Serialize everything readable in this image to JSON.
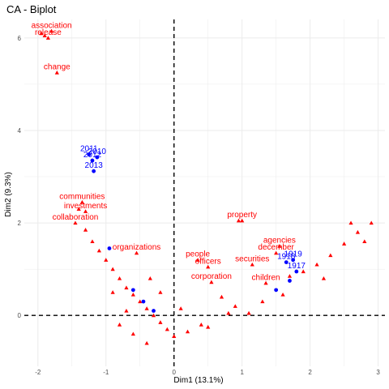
{
  "chart_data": {
    "type": "scatter",
    "title": "CA - Biplot",
    "xlabel": "Dim1 (13.1%)",
    "ylabel": "Dim2 (9.3%)",
    "xlim": [
      -2.2,
      3.1
    ],
    "ylim": [
      -1.1,
      6.4
    ],
    "x_ticks": [
      -2,
      -1,
      0,
      1,
      2,
      3
    ],
    "y_ticks": [
      0,
      2,
      4,
      6
    ],
    "grid": true,
    "reference_lines": {
      "x": 0,
      "y": 0,
      "style": "dashed"
    },
    "colors": {
      "rows": "#ff0000",
      "cols": "#0000ff",
      "grid": "#ebebeb",
      "ref": "#000000"
    },
    "series": [
      {
        "name": "rows",
        "marker": "triangle",
        "points": [
          {
            "label": "association",
            "x": -1.8,
            "y": 6.15
          },
          {
            "label": "release",
            "x": -1.85,
            "y": 6.0
          },
          {
            "label": "",
            "x": -1.9,
            "y": 6.05
          },
          {
            "label": "",
            "x": -1.95,
            "y": 6.1
          },
          {
            "label": "change",
            "x": -1.72,
            "y": 5.25
          },
          {
            "label": "communities",
            "x": -1.35,
            "y": 2.45
          },
          {
            "label": "investments",
            "x": -1.3,
            "y": 2.25
          },
          {
            "label": "",
            "x": -1.4,
            "y": 2.3
          },
          {
            "label": "collaboration",
            "x": -1.45,
            "y": 2.0
          },
          {
            "label": "",
            "x": -1.3,
            "y": 1.85
          },
          {
            "label": "",
            "x": -1.2,
            "y": 1.6
          },
          {
            "label": "",
            "x": -1.1,
            "y": 1.4
          },
          {
            "label": "",
            "x": -1.0,
            "y": 1.2
          },
          {
            "label": "",
            "x": -0.9,
            "y": 1.0
          },
          {
            "label": "",
            "x": -0.8,
            "y": 0.8
          },
          {
            "label": "",
            "x": -0.7,
            "y": 0.6
          },
          {
            "label": "organizations",
            "x": -0.55,
            "y": 1.35
          },
          {
            "label": "",
            "x": -0.6,
            "y": 0.45
          },
          {
            "label": "",
            "x": -0.5,
            "y": 0.3
          },
          {
            "label": "",
            "x": -0.4,
            "y": 0.15
          },
          {
            "label": "",
            "x": -0.3,
            "y": 0.0
          },
          {
            "label": "",
            "x": -0.2,
            "y": -0.15
          },
          {
            "label": "",
            "x": -0.1,
            "y": -0.3
          },
          {
            "label": "",
            "x": 0.0,
            "y": -0.45
          },
          {
            "label": "",
            "x": 0.2,
            "y": -0.35
          },
          {
            "label": "",
            "x": 0.4,
            "y": -0.2
          },
          {
            "label": "",
            "x": -0.4,
            "y": -0.6
          },
          {
            "label": "",
            "x": -0.6,
            "y": -0.4
          },
          {
            "label": "",
            "x": -0.8,
            "y": -0.2
          },
          {
            "label": "",
            "x": -0.7,
            "y": 0.1
          },
          {
            "label": "",
            "x": -0.9,
            "y": 0.5
          },
          {
            "label": "people",
            "x": 0.35,
            "y": 1.2
          },
          {
            "label": "officers",
            "x": 0.5,
            "y": 1.05
          },
          {
            "label": "corporation",
            "x": 0.55,
            "y": 0.72
          },
          {
            "label": "",
            "x": 0.7,
            "y": 0.4
          },
          {
            "label": "",
            "x": 0.9,
            "y": 0.2
          },
          {
            "label": "",
            "x": 1.1,
            "y": 0.05
          },
          {
            "label": "property",
            "x": 1.0,
            "y": 2.05
          },
          {
            "label": "",
            "x": 0.95,
            "y": 2.05
          },
          {
            "label": "securities",
            "x": 1.15,
            "y": 1.1
          },
          {
            "label": "agencies",
            "x": 1.55,
            "y": 1.5
          },
          {
            "label": "december",
            "x": 1.5,
            "y": 1.35
          },
          {
            "label": "children",
            "x": 1.35,
            "y": 0.7
          },
          {
            "label": "",
            "x": 1.7,
            "y": 0.85
          },
          {
            "label": "",
            "x": 1.9,
            "y": 0.95
          },
          {
            "label": "",
            "x": 2.1,
            "y": 1.1
          },
          {
            "label": "",
            "x": 2.3,
            "y": 1.3
          },
          {
            "label": "",
            "x": 2.5,
            "y": 1.55
          },
          {
            "label": "",
            "x": 2.7,
            "y": 1.8
          },
          {
            "label": "",
            "x": 2.9,
            "y": 2.0
          },
          {
            "label": "",
            "x": 2.6,
            "y": 2.0
          },
          {
            "label": "",
            "x": 2.8,
            "y": 1.6
          },
          {
            "label": "",
            "x": 2.2,
            "y": 0.8
          },
          {
            "label": "",
            "x": 1.6,
            "y": 0.45
          },
          {
            "label": "",
            "x": 1.3,
            "y": 0.3
          },
          {
            "label": "",
            "x": 0.8,
            "y": 0.05
          },
          {
            "label": "",
            "x": 0.5,
            "y": -0.25
          },
          {
            "label": "",
            "x": -0.2,
            "y": 0.5
          },
          {
            "label": "",
            "x": -0.35,
            "y": 0.8
          },
          {
            "label": "",
            "x": 0.1,
            "y": 0.15
          }
        ]
      },
      {
        "name": "cols",
        "marker": "circle",
        "points": [
          {
            "label": "2011",
            "x": -1.25,
            "y": 3.48
          },
          {
            "label": "2010",
            "x": -1.13,
            "y": 3.42
          },
          {
            "label": "2012",
            "x": -1.2,
            "y": 3.35
          },
          {
            "label": "2013",
            "x": -1.18,
            "y": 3.12
          },
          {
            "label": "",
            "x": -0.95,
            "y": 1.45
          },
          {
            "label": "",
            "x": -0.6,
            "y": 0.55
          },
          {
            "label": "",
            "x": -0.45,
            "y": 0.3
          },
          {
            "label": "",
            "x": -0.3,
            "y": 0.1
          },
          {
            "label": "1919",
            "x": 1.75,
            "y": 1.2
          },
          {
            "label": "1918",
            "x": 1.65,
            "y": 1.15
          },
          {
            "label": "1917",
            "x": 1.8,
            "y": 0.95
          },
          {
            "label": "",
            "x": 1.7,
            "y": 0.75
          },
          {
            "label": "",
            "x": 1.5,
            "y": 0.55
          }
        ]
      }
    ]
  }
}
